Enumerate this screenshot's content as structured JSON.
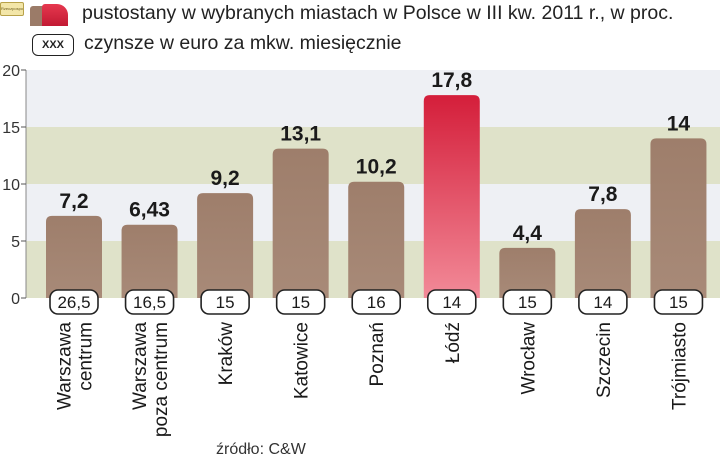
{
  "legend": {
    "vacancy_label": "pustostany  w wybranych miastach w Polsce w III kw. 2011 r., w proc.",
    "rent_box_label": "XXX",
    "rent_label": "czynsze w euro za mkw. miesięcznie",
    "logo_text": "Rzeczpospolita"
  },
  "source": "źródło: C&W",
  "colors": {
    "bar": "#9b7b68",
    "highlight": "#d9263f",
    "band_light": "#eef0f4",
    "band_olive": "#dfe2c9"
  },
  "chart_data": {
    "type": "bar",
    "categories": [
      [
        "Warszawa",
        "centrum"
      ],
      [
        "Warszawa",
        "poza centrum"
      ],
      [
        "Kraków"
      ],
      [
        "Katowice"
      ],
      [
        "Poznań"
      ],
      [
        "Łódź"
      ],
      [
        "Wrocław"
      ],
      [
        "Szczecin"
      ],
      [
        "Trójmiasto"
      ]
    ],
    "series": [
      {
        "values": [
          7.2,
          6.43,
          9.2,
          13.1,
          10.2,
          17.8,
          4.4,
          7.8,
          14
        ]
      }
    ],
    "value_labels": [
      "7,2",
      "6,43",
      "9,2",
      "13,1",
      "10,2",
      "17,8",
      "4,4",
      "7,8",
      "14"
    ],
    "rents": [
      "26,5",
      "16,5",
      "15",
      "15",
      "16",
      "14",
      "15",
      "14",
      "15"
    ],
    "highlight_index": 5,
    "y_ticks": [
      "0",
      "5",
      "10",
      "15",
      "20"
    ],
    "ylim": [
      0,
      20
    ],
    "grid": false,
    "legend_position": "top"
  }
}
